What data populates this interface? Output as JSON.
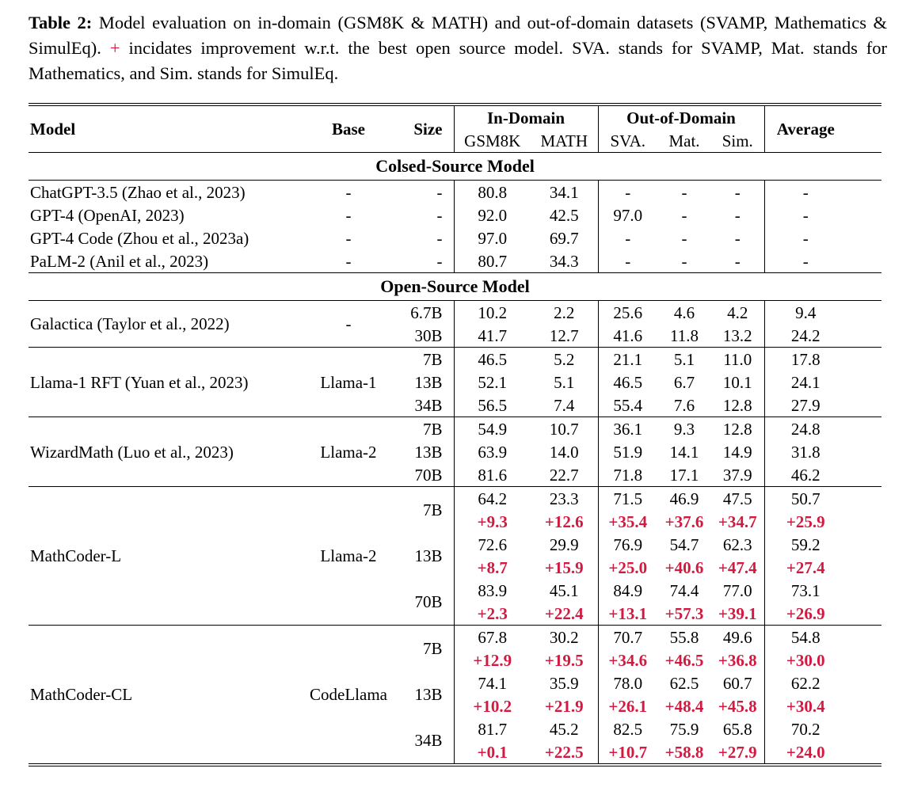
{
  "colors": {
    "improvement_red": "#d21940"
  },
  "caption": {
    "label": "Table 2:",
    "part1": "Model evaluation on in-domain (GSM8K & MATH) and out-of-domain datasets (SVAMP, Mathematics & SimulEq).",
    "plus": "+",
    "part2": "incidates improvement w.r.t. the best open source model. SVA. stands for SVAMP, Mat. stands for Mathematics, and Sim. stands for SimulEq."
  },
  "table": {
    "header": {
      "model": "Model",
      "base": "Base",
      "size": "Size",
      "in_domain": "In-Domain",
      "out_of_domain": "Out-of-Domain",
      "average": "Average",
      "gsm8k": "GSM8K",
      "math": "MATH",
      "sva": "SVA.",
      "mat": "Mat.",
      "sim": "Sim."
    },
    "sections": [
      {
        "title": "Colsed-Source Model",
        "dividers": false,
        "groups": [
          {
            "model": "ChatGPT-3.5 (Zhao et al., 2023)",
            "base": "-",
            "rows": [
              {
                "size": "-",
                "values": [
                  "80.8",
                  "34.1",
                  "-",
                  "-",
                  "-",
                  "-"
                ]
              }
            ]
          },
          {
            "model": "GPT-4 (OpenAI, 2023)",
            "base": "-",
            "rows": [
              {
                "size": "-",
                "values": [
                  "92.0",
                  "42.5",
                  "97.0",
                  "-",
                  "-",
                  "-"
                ]
              }
            ]
          },
          {
            "model": "GPT-4 Code (Zhou et al., 2023a)",
            "base": "-",
            "rows": [
              {
                "size": "-",
                "values": [
                  "97.0",
                  "69.7",
                  "-",
                  "-",
                  "-",
                  "-"
                ]
              }
            ]
          },
          {
            "model": "PaLM-2 (Anil et al., 2023)",
            "base": "-",
            "rows": [
              {
                "size": "-",
                "values": [
                  "80.7",
                  "34.3",
                  "-",
                  "-",
                  "-",
                  "-"
                ]
              }
            ]
          }
        ]
      },
      {
        "title": "Open-Source Model",
        "dividers": true,
        "groups": [
          {
            "model": "Galactica (Taylor et al., 2022)",
            "base": "-",
            "rows": [
              {
                "size": "6.7B",
                "values": [
                  "10.2",
                  "2.2",
                  "25.6",
                  "4.6",
                  "4.2",
                  "9.4"
                ]
              },
              {
                "size": "30B",
                "values": [
                  "41.7",
                  "12.7",
                  "41.6",
                  "11.8",
                  "13.2",
                  "24.2"
                ]
              }
            ]
          },
          {
            "model": "Llama-1 RFT (Yuan et al., 2023)",
            "base": "Llama-1",
            "rows": [
              {
                "size": "7B",
                "values": [
                  "46.5",
                  "5.2",
                  "21.1",
                  "5.1",
                  "11.0",
                  "17.8"
                ]
              },
              {
                "size": "13B",
                "values": [
                  "52.1",
                  "5.1",
                  "46.5",
                  "6.7",
                  "10.1",
                  "24.1"
                ]
              },
              {
                "size": "34B",
                "values": [
                  "56.5",
                  "7.4",
                  "55.4",
                  "7.6",
                  "12.8",
                  "27.9"
                ]
              }
            ]
          },
          {
            "model": "WizardMath (Luo et al., 2023)",
            "base": "Llama-2",
            "rows": [
              {
                "size": "7B",
                "values": [
                  "54.9",
                  "10.7",
                  "36.1",
                  "9.3",
                  "12.8",
                  "24.8"
                ]
              },
              {
                "size": "13B",
                "values": [
                  "63.9",
                  "14.0",
                  "51.9",
                  "14.1",
                  "14.9",
                  "31.8"
                ]
              },
              {
                "size": "70B",
                "values": [
                  "81.6",
                  "22.7",
                  "71.8",
                  "17.1",
                  "37.9",
                  "46.2"
                ]
              }
            ]
          },
          {
            "model": "MathCoder-L",
            "base": "Llama-2",
            "rows": [
              {
                "size": "7B",
                "values": [
                  "64.2",
                  "23.3",
                  "71.5",
                  "46.9",
                  "47.5",
                  "50.7"
                ],
                "improvements": [
                  "+9.3",
                  "+12.6",
                  "+35.4",
                  "+37.6",
                  "+34.7",
                  "+25.9"
                ]
              },
              {
                "size": "13B",
                "values": [
                  "72.6",
                  "29.9",
                  "76.9",
                  "54.7",
                  "62.3",
                  "59.2"
                ],
                "improvements": [
                  "+8.7",
                  "+15.9",
                  "+25.0",
                  "+40.6",
                  "+47.4",
                  "+27.4"
                ]
              },
              {
                "size": "70B",
                "values": [
                  "83.9",
                  "45.1",
                  "84.9",
                  "74.4",
                  "77.0",
                  "73.1"
                ],
                "improvements": [
                  "+2.3",
                  "+22.4",
                  "+13.1",
                  "+57.3",
                  "+39.1",
                  "+26.9"
                ]
              }
            ]
          },
          {
            "model": "MathCoder-CL",
            "base": "CodeLlama",
            "rows": [
              {
                "size": "7B",
                "values": [
                  "67.8",
                  "30.2",
                  "70.7",
                  "55.8",
                  "49.6",
                  "54.8"
                ],
                "improvements": [
                  "+12.9",
                  "+19.5",
                  "+34.6",
                  "+46.5",
                  "+36.8",
                  "+30.0"
                ]
              },
              {
                "size": "13B",
                "values": [
                  "74.1",
                  "35.9",
                  "78.0",
                  "62.5",
                  "60.7",
                  "62.2"
                ],
                "improvements": [
                  "+10.2",
                  "+21.9",
                  "+26.1",
                  "+48.4",
                  "+45.8",
                  "+30.4"
                ]
              },
              {
                "size": "34B",
                "values": [
                  "81.7",
                  "45.2",
                  "82.5",
                  "75.9",
                  "65.8",
                  "70.2"
                ],
                "improvements": [
                  "+0.1",
                  "+22.5",
                  "+10.7",
                  "+58.8",
                  "+27.9",
                  "+24.0"
                ]
              }
            ]
          }
        ]
      }
    ]
  }
}
